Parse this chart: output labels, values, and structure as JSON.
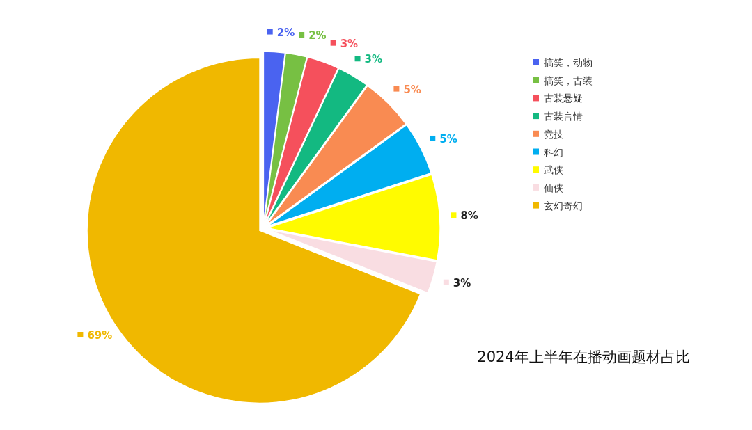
{
  "chart_data": {
    "type": "pie",
    "title": "2024年上半年在播动画题材占比",
    "categories": [
      "搞笑，动物",
      "搞笑，古装",
      "古装悬疑",
      "古装言情",
      "竞技",
      "科幻",
      "武侠",
      "仙侠",
      "玄幻奇幻"
    ],
    "values": [
      2,
      2,
      3,
      3,
      5,
      5,
      8,
      3,
      69
    ],
    "value_labels": [
      "2%",
      "2%",
      "3%",
      "3%",
      "5%",
      "5%",
      "8%",
      "3%",
      "69%"
    ],
    "colors": [
      "#4a63f0",
      "#77c043",
      "#f5505c",
      "#13b981",
      "#f98b52",
      "#00aef0",
      "#fffb00",
      "#f9dde2",
      "#f0b800"
    ],
    "legend": "top right"
  }
}
